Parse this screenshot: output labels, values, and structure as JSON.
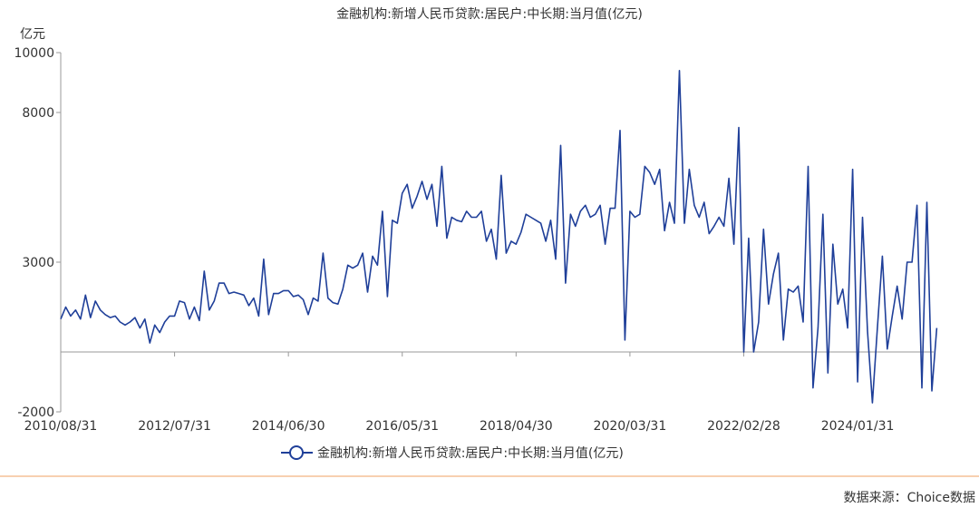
{
  "chart_data": {
    "type": "line",
    "title": "金融机构:新增人民币贷款:居民户:中长期:当月值(亿元)",
    "y_unit_label": "亿元",
    "ylim": [
      -2000,
      10000
    ],
    "y_ticks": [
      -2000,
      3000,
      8000,
      10000
    ],
    "y_ticks_labels": [
      "-2000",
      "3000",
      "8000",
      "10000"
    ],
    "x_tick_labels": [
      "2010/08/31",
      "2012/07/31",
      "2014/06/30",
      "2016/05/31",
      "2018/04/30",
      "2020/03/31",
      "2022/02/28",
      "2024/01/31"
    ],
    "x_tick_index": [
      0,
      23,
      46,
      69,
      92,
      115,
      138,
      161
    ],
    "legend_position": "bottom",
    "grid": false,
    "series": [
      {
        "name": "金融机构:新增人民币贷款:居民户:中长期:当月值(亿元)",
        "color": "#1f3f99",
        "values": [
          1100,
          1500,
          1200,
          1400,
          1100,
          1900,
          1150,
          1700,
          1400,
          1250,
          1150,
          1200,
          1000,
          900,
          1000,
          1150,
          800,
          1100,
          300,
          900,
          650,
          1000,
          1200,
          1200,
          1700,
          1650,
          1100,
          1500,
          1050,
          2700,
          1400,
          1700,
          2300,
          2300,
          1950,
          2000,
          1950,
          1900,
          1550,
          1800,
          1200,
          3100,
          1250,
          1950,
          1950,
          2050,
          2050,
          1850,
          1900,
          1750,
          1250,
          1800,
          1700,
          3300,
          1800,
          1650,
          1600,
          2100,
          2900,
          2800,
          2900,
          3300,
          2000,
          3200,
          2900,
          4700,
          1850,
          4400,
          4300,
          5300,
          5600,
          4800,
          5200,
          5700,
          5100,
          5600,
          4200,
          6200,
          3800,
          4500,
          4400,
          4350,
          4700,
          4500,
          4500,
          4700,
          3700,
          4100,
          3100,
          5900,
          3300,
          3700,
          3600,
          4000,
          4600,
          4500,
          4400,
          4300,
          3700,
          4400,
          3100,
          6900,
          2300,
          4600,
          4200,
          4700,
          4900,
          4500,
          4600,
          4900,
          3600,
          4800,
          4800,
          7400,
          400,
          4700,
          4500,
          4600,
          6200,
          6000,
          5600,
          6100,
          4050,
          5000,
          4300,
          9400,
          4300,
          6100,
          4900,
          4500,
          5000,
          3950,
          4200,
          4500,
          4200,
          5800,
          3600,
          7500,
          -1,
          3800,
          -1,
          1000,
          4100,
          1600,
          2600,
          3300,
          400,
          2100,
          2000,
          2200,
          1000,
          6200,
          -1200,
          800,
          4600,
          -700,
          3600,
          1600,
          2100,
          800,
          6100,
          -1000,
          4500,
          700,
          -1700,
          800,
          3200,
          100,
          1200,
          2200,
          1100,
          3000,
          3000,
          4900,
          -1200,
          5000,
          -1300,
          800
        ]
      }
    ],
    "source": "数据来源：Choice数据"
  }
}
